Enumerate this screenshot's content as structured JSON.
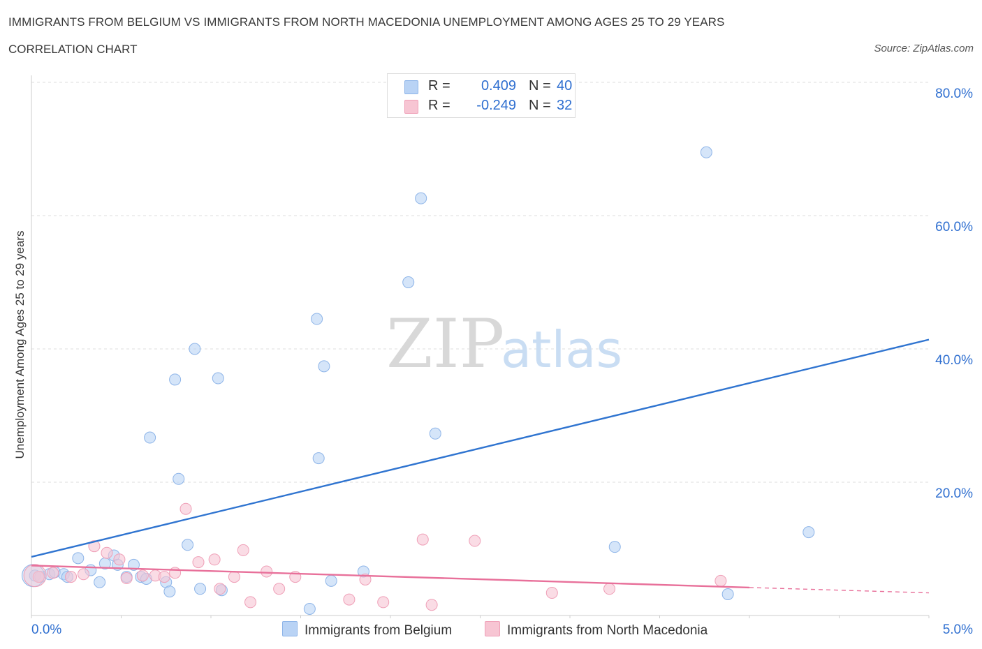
{
  "title": "IMMIGRANTS FROM BELGIUM VS IMMIGRANTS FROM NORTH MACEDONIA UNEMPLOYMENT AMONG AGES 25 TO 29 YEARS",
  "subtitle": "CORRELATION CHART",
  "source": "Source: ZipAtlas.com",
  "watermark": {
    "zip": "ZIP",
    "atlas": "atlas"
  },
  "colors": {
    "blue_fill": "#b9d3f5",
    "blue_stroke": "#8db4e8",
    "blue_line": "#2f74d0",
    "pink_fill": "#f7c5d3",
    "pink_stroke": "#ef9fb7",
    "pink_line": "#e8709a",
    "value_text": "#2f6fd0",
    "grid": "#dddddd"
  },
  "legend": {
    "rows": [
      {
        "r_label": "R =",
        "r_value": "0.409",
        "n_label": "N =",
        "n_value": "40"
      },
      {
        "r_label": "R =",
        "r_value": "-0.249",
        "n_label": "N =",
        "n_value": "32"
      }
    ]
  },
  "chart_data": {
    "type": "scatter",
    "title": "IMMIGRANTS FROM BELGIUM VS IMMIGRANTS FROM NORTH MACEDONIA UNEMPLOYMENT AMONG AGES 25 TO 29 YEARS",
    "xlabel": "",
    "ylabel": "Unemployment Among Ages 25 to 29 years",
    "xlim": [
      0,
      5
    ],
    "ylim": [
      0,
      80
    ],
    "x_tick_labels": [
      "0.0%",
      "5.0%"
    ],
    "y_tick_labels": [
      "20.0%",
      "40.0%",
      "60.0%",
      "80.0%"
    ],
    "y_ticks": [
      20,
      40,
      60,
      80
    ],
    "grid": true,
    "series": [
      {
        "name": "Immigrants from Belgium",
        "color": "blue",
        "trend": {
          "x0": 0.0,
          "y0": 8.8,
          "x1": 5.0,
          "y1": 41.4
        },
        "points": [
          [
            0.02,
            6.0
          ],
          [
            0.05,
            5.8
          ],
          [
            0.1,
            6.2
          ],
          [
            0.13,
            6.5
          ],
          [
            0.18,
            6.2
          ],
          [
            0.2,
            5.8
          ],
          [
            0.26,
            8.6
          ],
          [
            0.33,
            6.8
          ],
          [
            0.38,
            5.0
          ],
          [
            0.41,
            7.8
          ],
          [
            0.46,
            9.0
          ],
          [
            0.48,
            7.6
          ],
          [
            0.53,
            5.8
          ],
          [
            0.57,
            7.6
          ],
          [
            0.61,
            5.8
          ],
          [
            0.64,
            5.5
          ],
          [
            0.66,
            26.7
          ],
          [
            0.75,
            5.0
          ],
          [
            0.77,
            3.6
          ],
          [
            0.8,
            35.4
          ],
          [
            0.82,
            20.5
          ],
          [
            0.87,
            10.6
          ],
          [
            0.91,
            40.0
          ],
          [
            0.94,
            4.0
          ],
          [
            1.04,
            35.6
          ],
          [
            1.06,
            3.8
          ],
          [
            1.55,
            1.0
          ],
          [
            1.6,
            23.6
          ],
          [
            1.59,
            44.5
          ],
          [
            1.63,
            37.4
          ],
          [
            1.67,
            5.2
          ],
          [
            1.85,
            6.6
          ],
          [
            2.1,
            50.0
          ],
          [
            2.17,
            62.6
          ],
          [
            2.25,
            27.3
          ],
          [
            3.25,
            10.3
          ],
          [
            3.76,
            69.5
          ],
          [
            3.88,
            3.2
          ],
          [
            4.33,
            12.5
          ],
          [
            0.01,
            6.0
          ]
        ]
      },
      {
        "name": "Immigrants from North Macedonia",
        "color": "pink",
        "trend": {
          "x0": 0.0,
          "y0": 7.5,
          "x1": 4.0,
          "y1": 4.2
        },
        "trend_dash": {
          "x0": 4.0,
          "y0": 4.2,
          "x1": 5.0,
          "y1": 3.4
        },
        "points": [
          [
            0.04,
            5.8
          ],
          [
            0.12,
            6.4
          ],
          [
            0.22,
            5.8
          ],
          [
            0.29,
            6.2
          ],
          [
            0.35,
            10.4
          ],
          [
            0.42,
            9.4
          ],
          [
            0.49,
            8.4
          ],
          [
            0.53,
            5.6
          ],
          [
            0.62,
            6.0
          ],
          [
            0.69,
            6.0
          ],
          [
            0.74,
            5.8
          ],
          [
            0.8,
            6.4
          ],
          [
            0.86,
            16.0
          ],
          [
            0.93,
            8.0
          ],
          [
            1.02,
            8.4
          ],
          [
            1.05,
            4.0
          ],
          [
            1.13,
            5.8
          ],
          [
            1.18,
            9.8
          ],
          [
            1.22,
            2.0
          ],
          [
            1.31,
            6.6
          ],
          [
            1.38,
            4.0
          ],
          [
            1.47,
            5.8
          ],
          [
            1.77,
            2.4
          ],
          [
            1.86,
            5.4
          ],
          [
            1.96,
            2.0
          ],
          [
            2.18,
            11.4
          ],
          [
            2.23,
            1.6
          ],
          [
            2.47,
            11.2
          ],
          [
            2.9,
            3.4
          ],
          [
            3.22,
            4.0
          ],
          [
            3.84,
            5.2
          ],
          [
            0.02,
            6.0
          ]
        ]
      }
    ]
  },
  "bottom_legend": [
    {
      "label": "Immigrants from Belgium"
    },
    {
      "label": "Immigrants from North Macedonia"
    }
  ]
}
